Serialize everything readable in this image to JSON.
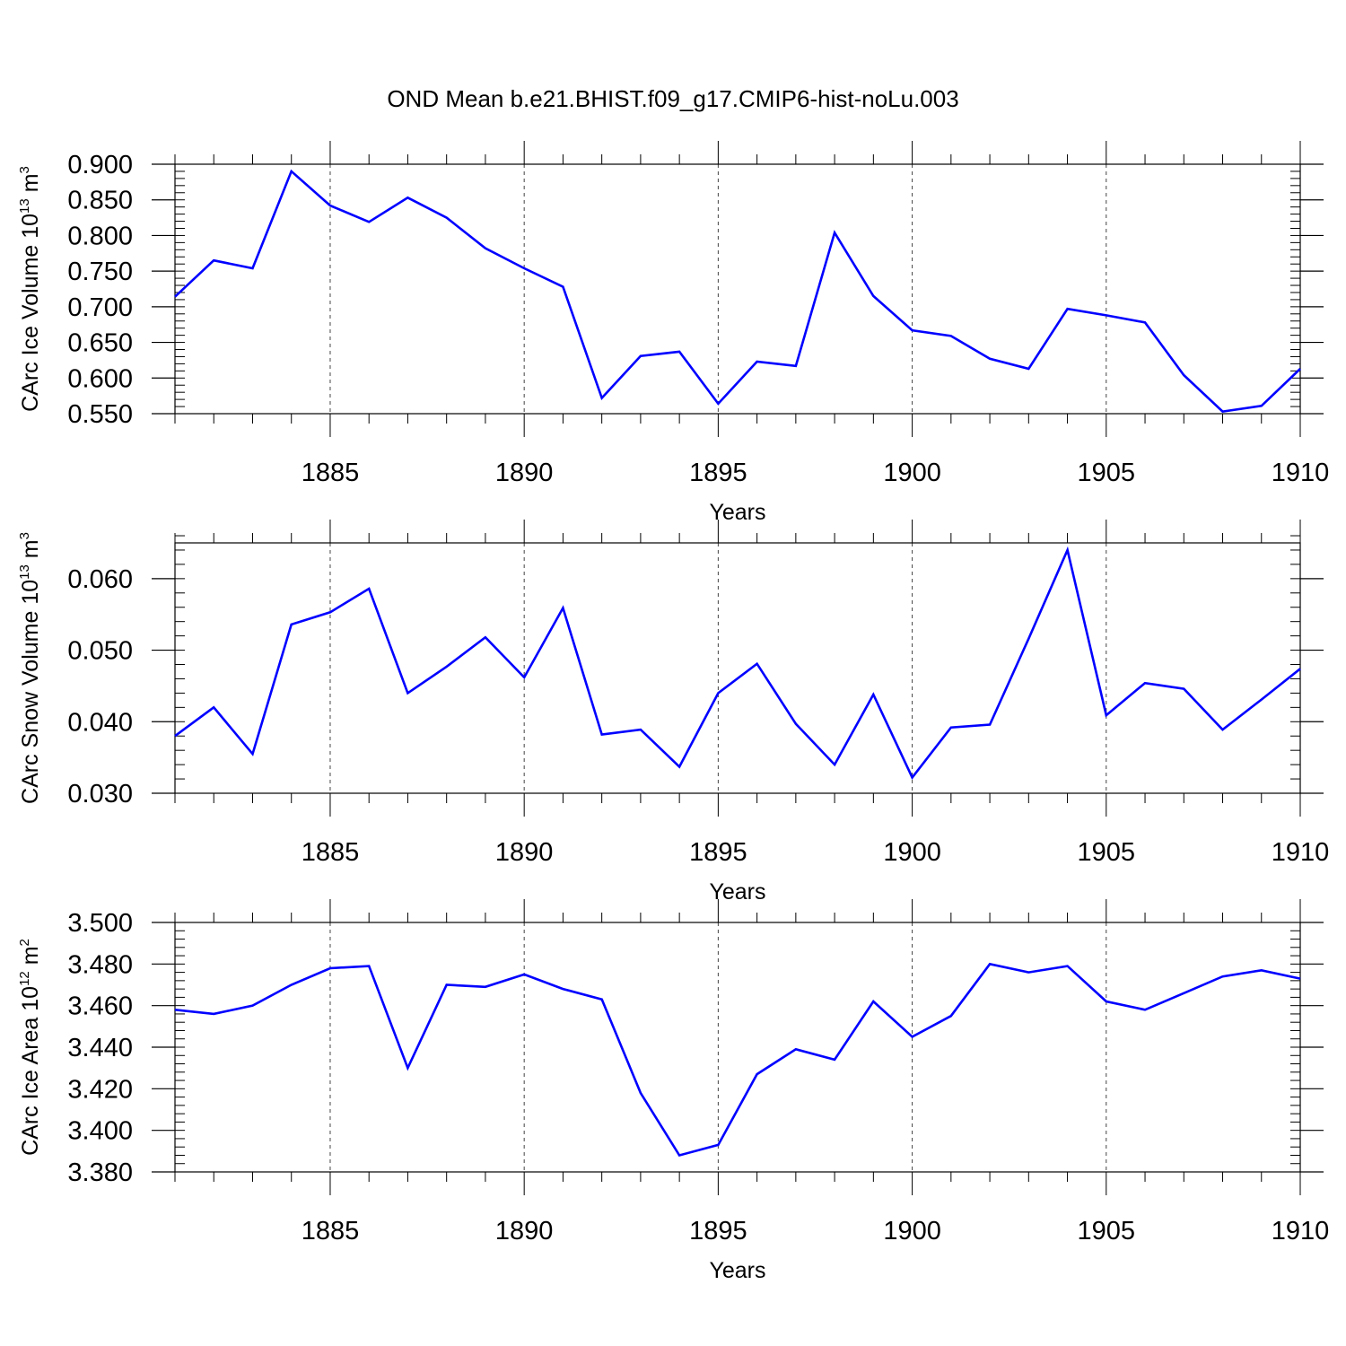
{
  "title": "OND Mean b.e21.BHIST.f09_g17.CMIP6-hist-noLu.003",
  "chart_data": [
    {
      "type": "line",
      "name": "ice-volume",
      "ylabel_prefix": "CArc Ice Volume 10",
      "ylabel_exp": "13",
      "ylabel_unit": " m",
      "ylabel_unit_exp": "3",
      "xlabel": "Years",
      "color": "#0000ff",
      "xlim": [
        1881,
        1910
      ],
      "ylim": [
        0.55,
        0.9
      ],
      "yticks": [
        0.55,
        0.6,
        0.65,
        0.7,
        0.75,
        0.8,
        0.85,
        0.9
      ],
      "ytick_labels": [
        "0.550",
        "0.600",
        "0.650",
        "0.700",
        "0.750",
        "0.800",
        "0.850",
        "0.900"
      ],
      "yminor": 0.01,
      "xticks": [
        1885,
        1890,
        1895,
        1900,
        1905,
        1910
      ],
      "xtick_labels": [
        "1885",
        "1890",
        "1895",
        "1900",
        "1905",
        "1910"
      ],
      "x": [
        1881,
        1882,
        1883,
        1884,
        1885,
        1886,
        1887,
        1888,
        1889,
        1890,
        1891,
        1892,
        1893,
        1894,
        1895,
        1896,
        1897,
        1898,
        1899,
        1900,
        1901,
        1902,
        1903,
        1904,
        1905,
        1906,
        1907,
        1908,
        1909,
        1910
      ],
      "y": [
        0.714,
        0.765,
        0.754,
        0.89,
        0.842,
        0.819,
        0.853,
        0.825,
        0.782,
        0.754,
        0.728,
        0.572,
        0.631,
        0.637,
        0.564,
        0.623,
        0.617,
        0.804,
        0.715,
        0.667,
        0.659,
        0.627,
        0.613,
        0.697,
        0.688,
        0.678,
        0.604,
        0.553,
        0.561,
        0.613
      ]
    },
    {
      "type": "line",
      "name": "snow-volume",
      "ylabel_prefix": "CArc Snow Volume 10",
      "ylabel_exp": "13",
      "ylabel_unit": " m",
      "ylabel_unit_exp": "3",
      "xlabel": "Years",
      "color": "#0000ff",
      "xlim": [
        1881,
        1910
      ],
      "ylim": [
        0.03,
        0.065
      ],
      "yticks": [
        0.03,
        0.04,
        0.05,
        0.06
      ],
      "ytick_labels": [
        "0.030",
        "0.040",
        "0.050",
        "0.060"
      ],
      "yminor": 0.002,
      "xticks": [
        1885,
        1890,
        1895,
        1900,
        1905,
        1910
      ],
      "xtick_labels": [
        "1885",
        "1890",
        "1895",
        "1900",
        "1905",
        "1910"
      ],
      "x": [
        1881,
        1882,
        1883,
        1884,
        1885,
        1886,
        1887,
        1888,
        1889,
        1890,
        1891,
        1892,
        1893,
        1894,
        1895,
        1896,
        1897,
        1898,
        1899,
        1900,
        1901,
        1902,
        1903,
        1904,
        1905,
        1906,
        1907,
        1908,
        1909,
        1910
      ],
      "y": [
        0.038,
        0.042,
        0.0355,
        0.0536,
        0.0553,
        0.0586,
        0.044,
        0.0477,
        0.0518,
        0.0462,
        0.0559,
        0.0382,
        0.0389,
        0.0337,
        0.044,
        0.0481,
        0.0397,
        0.034,
        0.0438,
        0.0322,
        0.0392,
        0.0396,
        0.0516,
        0.064,
        0.0409,
        0.0454,
        0.0446,
        0.0389,
        0.0431,
        0.0474
      ]
    },
    {
      "type": "line",
      "name": "ice-area",
      "ylabel_prefix": "CArc Ice Area 10",
      "ylabel_exp": "12",
      "ylabel_unit": " m",
      "ylabel_unit_exp": "2",
      "xlabel": "Years",
      "color": "#0000ff",
      "xlim": [
        1881,
        1910
      ],
      "ylim": [
        3.38,
        3.5
      ],
      "yticks": [
        3.38,
        3.4,
        3.42,
        3.44,
        3.46,
        3.48,
        3.5
      ],
      "ytick_labels": [
        "3.380",
        "3.400",
        "3.420",
        "3.440",
        "3.460",
        "3.480",
        "3.500"
      ],
      "yminor": 0.004,
      "xticks": [
        1885,
        1890,
        1895,
        1900,
        1905,
        1910
      ],
      "xtick_labels": [
        "1885",
        "1890",
        "1895",
        "1900",
        "1905",
        "1910"
      ],
      "x": [
        1881,
        1882,
        1883,
        1884,
        1885,
        1886,
        1887,
        1888,
        1889,
        1890,
        1891,
        1892,
        1893,
        1894,
        1895,
        1896,
        1897,
        1898,
        1899,
        1900,
        1901,
        1902,
        1903,
        1904,
        1905,
        1906,
        1907,
        1908,
        1909,
        1910
      ],
      "y": [
        3.458,
        3.456,
        3.46,
        3.47,
        3.478,
        3.479,
        3.43,
        3.47,
        3.469,
        3.475,
        3.468,
        3.463,
        3.418,
        3.388,
        3.393,
        3.427,
        3.439,
        3.434,
        3.462,
        3.445,
        3.455,
        3.48,
        3.476,
        3.479,
        3.462,
        3.458,
        3.466,
        3.474,
        3.477,
        3.473
      ]
    }
  ]
}
